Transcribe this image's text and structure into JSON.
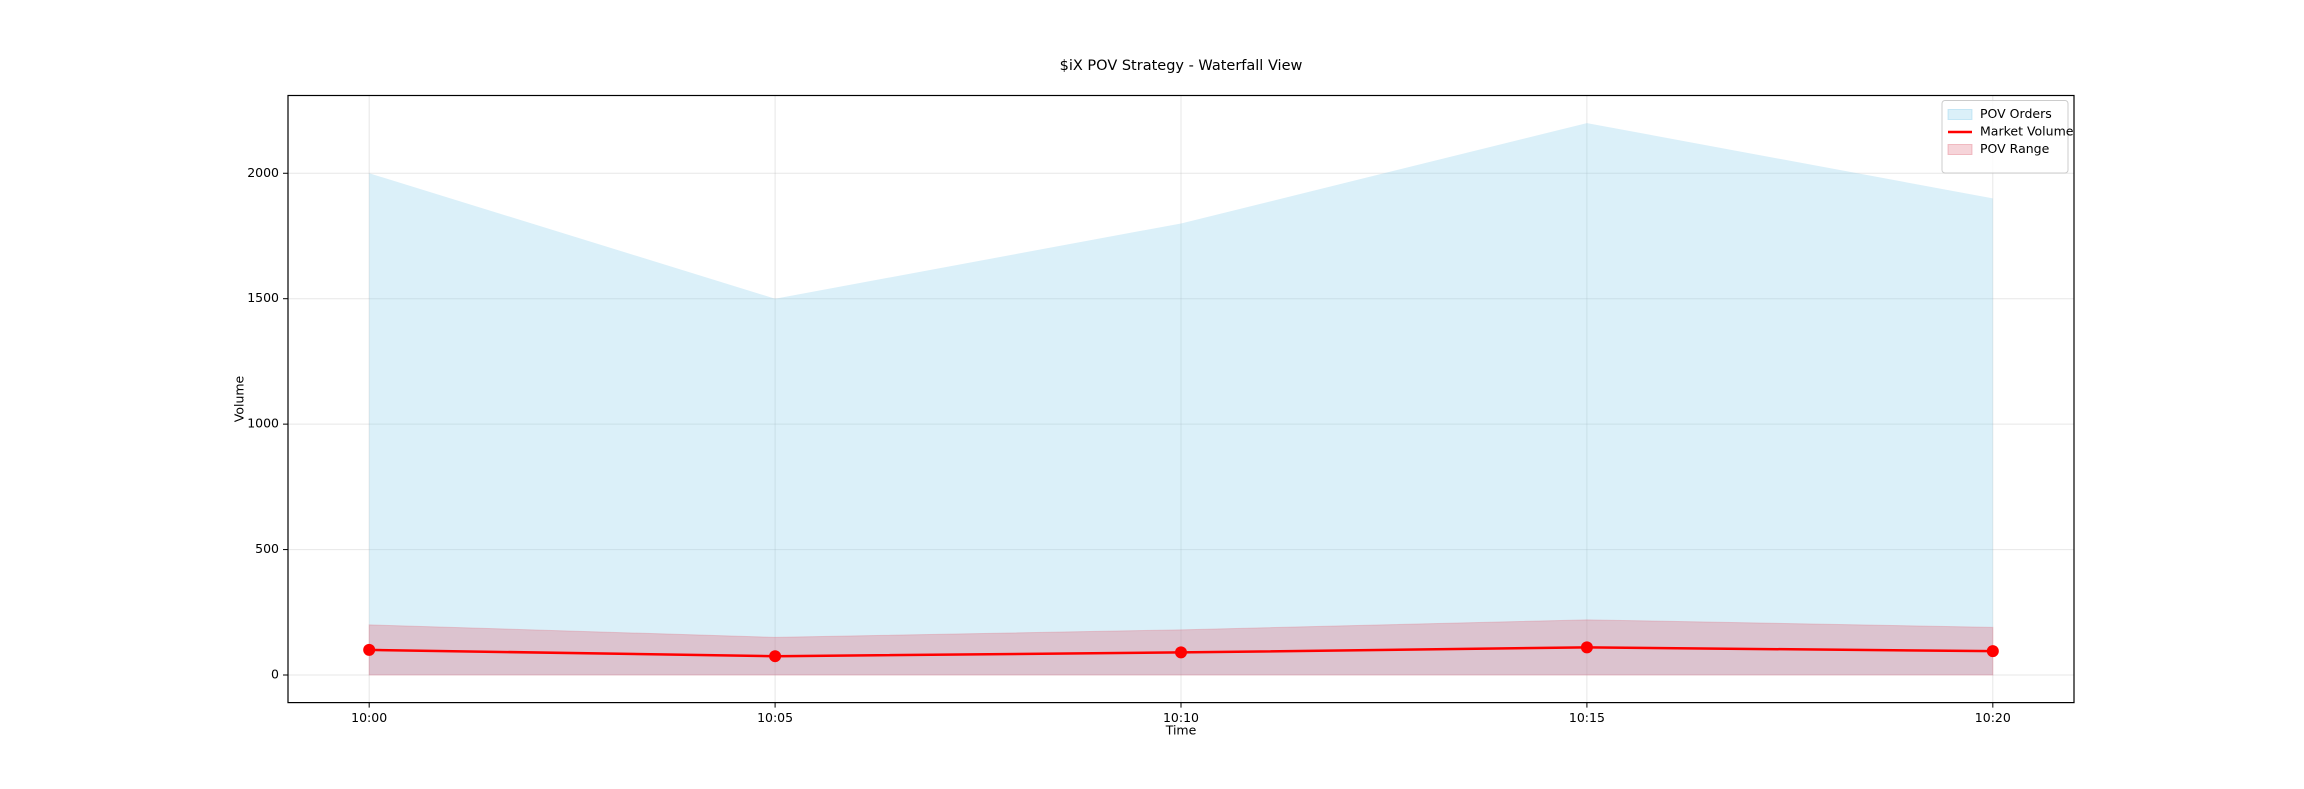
{
  "chart_data": {
    "type": "area",
    "title": "$iX POV Strategy - Waterfall View",
    "x_label": "Time",
    "y_label": "Volume",
    "categories": [
      "10:00",
      "10:05",
      "10:10",
      "10:15",
      "10:20"
    ],
    "series": [
      {
        "name": "POV Orders",
        "kind": "area",
        "color": "#87ceeb",
        "values": [
          2000,
          1500,
          1800,
          2200,
          1900
        ]
      },
      {
        "name": "Market Volume",
        "kind": "line",
        "color": "#ff0000",
        "values": [
          100,
          75,
          90,
          110,
          95
        ]
      },
      {
        "name": "POV Range",
        "kind": "band",
        "color": "#e07080",
        "lower": [
          0,
          0,
          0,
          0,
          0
        ],
        "upper": [
          200,
          150,
          180,
          220,
          190
        ]
      }
    ],
    "ylim": [
      -110,
      2310
    ],
    "yticks": [
      0,
      500,
      1000,
      1500,
      2000
    ],
    "grid": true,
    "legend": "upper right"
  }
}
